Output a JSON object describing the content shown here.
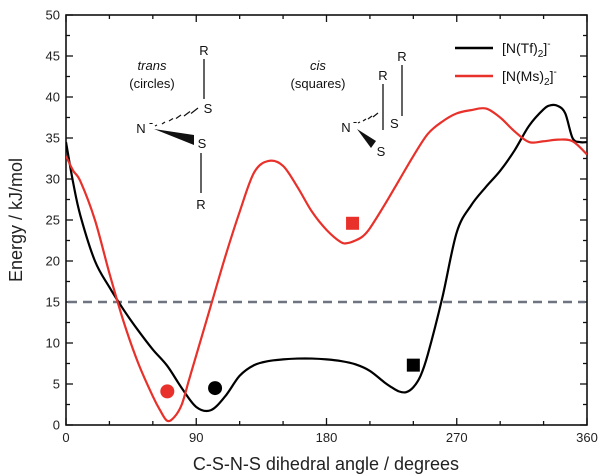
{
  "chart_data": {
    "type": "line",
    "title": "",
    "xlabel": "C-S-N-S dihedral angle / degrees",
    "ylabel": "Energy / kJ/mol",
    "xlim": [
      0,
      360
    ],
    "ylim": [
      0,
      50
    ],
    "xticks": [
      0,
      90,
      180,
      270,
      360
    ],
    "yticks": [
      0,
      5,
      10,
      15,
      20,
      25,
      30,
      35,
      40,
      45,
      50
    ],
    "grid": false,
    "legend_position": "top-right",
    "series": [
      {
        "name": "[N(Tf)2]-",
        "name_main": "[N(Tf)",
        "name_sub": "2",
        "name_end": "]",
        "name_sup": "-",
        "color": "#000000",
        "x": [
          0,
          5,
          10,
          20,
          30,
          40,
          50,
          60,
          70,
          80,
          90,
          100,
          110,
          120,
          130,
          140,
          150,
          160,
          170,
          180,
          190,
          200,
          210,
          220,
          225,
          230,
          235,
          240,
          245,
          250,
          260,
          270,
          280,
          290,
          300,
          310,
          320,
          330,
          335,
          340,
          345,
          350,
          355,
          360
        ],
        "values": [
          34.5,
          29.5,
          25.5,
          20.0,
          16.8,
          14.0,
          11.5,
          9.2,
          7.2,
          4.5,
          2.2,
          1.8,
          3.5,
          6.0,
          7.3,
          7.8,
          8.0,
          8.1,
          8.1,
          8.0,
          7.8,
          7.4,
          6.6,
          5.2,
          4.6,
          4.1,
          4.0,
          4.6,
          6.0,
          8.6,
          15.5,
          23.5,
          26.8,
          29.0,
          31.0,
          33.5,
          36.5,
          38.5,
          39.0,
          38.9,
          38.0,
          35.0,
          34.5,
          34.5
        ]
      },
      {
        "name": "[N(Ms)2]-",
        "name_main": "[N(Ms)",
        "name_sub": "2",
        "name_end": "]",
        "name_sup": "-",
        "color": "#e8312a",
        "x": [
          0,
          5,
          10,
          20,
          30,
          40,
          50,
          60,
          65,
          70,
          75,
          80,
          85,
          90,
          100,
          110,
          120,
          130,
          140,
          150,
          160,
          170,
          180,
          190,
          195,
          200,
          205,
          210,
          220,
          230,
          240,
          250,
          260,
          270,
          280,
          290,
          300,
          310,
          320,
          330,
          340,
          350,
          360
        ],
        "values": [
          32.8,
          31.0,
          29.7,
          25.0,
          18.5,
          12.5,
          7.5,
          3.5,
          1.8,
          0.5,
          1.0,
          2.5,
          5.5,
          8.5,
          14.5,
          20.5,
          26.0,
          30.8,
          32.2,
          31.6,
          29.0,
          26.0,
          23.8,
          22.3,
          22.2,
          22.5,
          23.0,
          24.0,
          26.8,
          29.8,
          32.8,
          35.5,
          37.0,
          38.0,
          38.4,
          38.6,
          37.5,
          35.8,
          34.5,
          34.6,
          34.8,
          34.6,
          33.0
        ]
      }
    ],
    "markers": [
      {
        "shape": "circle",
        "color": "#e8312a",
        "x": 70,
        "y": 4.1
      },
      {
        "shape": "circle",
        "color": "#000000",
        "x": 103,
        "y": 4.5
      },
      {
        "shape": "square",
        "color": "#e8312a",
        "x": 198,
        "y": 24.6
      },
      {
        "shape": "square",
        "color": "#000000",
        "x": 240,
        "y": 7.3
      }
    ],
    "reference_line": {
      "y": 15,
      "color": "#6e7580",
      "style": "dashed"
    },
    "annotations": {
      "trans_label": "trans",
      "trans_sub": "(circles)",
      "cis_label": "cis",
      "cis_sub": "(squares)",
      "atom_r": "R",
      "atom_s": "S",
      "atom_n": "N",
      "n_charge": "-"
    }
  }
}
